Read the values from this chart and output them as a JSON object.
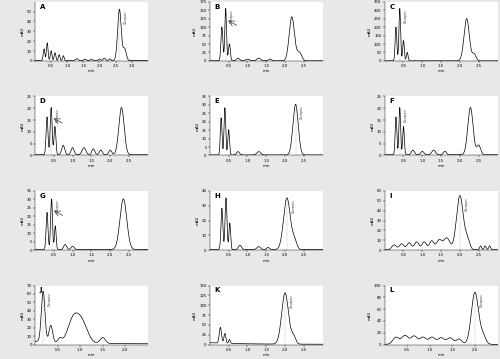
{
  "panels": [
    "A",
    "B",
    "C",
    "D",
    "E",
    "F",
    "G",
    "H",
    "I",
    "J",
    "K",
    "L"
  ],
  "bg_color": "#e8e8e8",
  "plot_bg": "#ffffff",
  "line_color": "#000000",
  "panel_descriptions": {
    "A": {
      "ylim": [
        0,
        60
      ],
      "yticks": [
        0,
        10,
        20,
        30,
        40,
        50
      ],
      "xlim": [
        0,
        3.5
      ],
      "xticks": [
        0.5,
        1.0,
        1.5,
        2.0,
        2.5,
        3.0
      ],
      "has_arrow": false
    },
    "B": {
      "ylim": [
        0,
        175
      ],
      "yticks": [
        0,
        25,
        50,
        75,
        100,
        125,
        150,
        175
      ],
      "xlim": [
        0,
        3.0
      ],
      "xticks": [
        0.5,
        1.0,
        1.5,
        2.0,
        2.5
      ],
      "has_arrow": true
    },
    "C": {
      "ylim": [
        0,
        350
      ],
      "yticks": [
        0,
        50,
        100,
        150,
        200,
        250,
        300,
        350
      ],
      "xlim": [
        0,
        3.0
      ],
      "xticks": [
        0.5,
        1.0,
        1.5,
        2.0,
        2.5
      ],
      "has_arrow": false
    },
    "D": {
      "ylim": [
        0,
        25
      ],
      "yticks": [
        0,
        5,
        10,
        15,
        20,
        25
      ],
      "xlim": [
        0,
        3.0
      ],
      "xticks": [
        0.5,
        1.0,
        1.5,
        2.0,
        2.5
      ],
      "has_arrow": true
    },
    "E": {
      "ylim": [
        0,
        35
      ],
      "yticks": [
        0,
        5,
        10,
        15,
        20,
        25,
        30,
        35
      ],
      "xlim": [
        0,
        3.0
      ],
      "xticks": [
        0.5,
        1.0,
        1.5,
        2.0,
        2.5
      ],
      "has_arrow": false
    },
    "F": {
      "ylim": [
        0,
        25
      ],
      "yticks": [
        0,
        5,
        10,
        15,
        20,
        25
      ],
      "xlim": [
        0,
        3.0
      ],
      "xticks": [
        0.5,
        1.0,
        1.5,
        2.0,
        2.5
      ],
      "has_arrow": false
    },
    "G": {
      "ylim": [
        0,
        35
      ],
      "yticks": [
        0,
        5,
        10,
        15,
        20,
        25,
        30,
        35
      ],
      "xlim": [
        0,
        3.0
      ],
      "xticks": [
        0.5,
        1.0,
        1.5,
        2.0,
        2.5
      ],
      "has_arrow": true
    },
    "H": {
      "ylim": [
        0,
        40
      ],
      "yticks": [
        0,
        10,
        20,
        30,
        40
      ],
      "xlim": [
        0,
        3.0
      ],
      "xticks": [
        0.5,
        1.0,
        1.5,
        2.0,
        2.5
      ],
      "has_arrow": false
    },
    "I": {
      "ylim": [
        0,
        60
      ],
      "yticks": [
        0,
        10,
        20,
        30,
        40,
        50,
        60
      ],
      "xlim": [
        0,
        3.0
      ],
      "xticks": [
        0.5,
        1.0,
        1.5,
        2.0,
        2.5
      ],
      "has_arrow": false
    },
    "J": {
      "ylim": [
        0,
        70
      ],
      "yticks": [
        0,
        10,
        20,
        30,
        40,
        50,
        60,
        70
      ],
      "xlim": [
        0,
        2.5
      ],
      "xticks": [
        0.5,
        1.0,
        1.5,
        2.0
      ],
      "has_arrow": false
    },
    "K": {
      "ylim": [
        0,
        150
      ],
      "yticks": [
        0,
        25,
        50,
        75,
        100,
        125,
        150
      ],
      "xlim": [
        0,
        3.0
      ],
      "xticks": [
        0.5,
        1.0,
        1.5,
        2.0,
        2.5
      ],
      "has_arrow": false
    },
    "L": {
      "ylim": [
        0,
        100
      ],
      "yticks": [
        0,
        20,
        40,
        60,
        80,
        100
      ],
      "xlim": [
        0,
        2.5
      ],
      "xticks": [
        0.5,
        1.0,
        1.5,
        2.0
      ],
      "has_arrow": false
    }
  }
}
